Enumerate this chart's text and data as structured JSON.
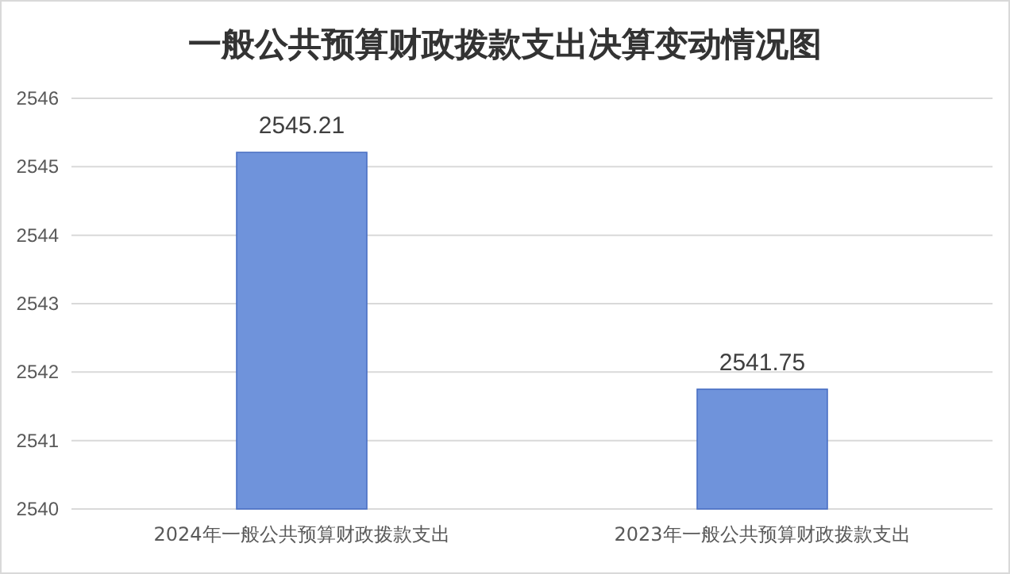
{
  "chart_data": {
    "type": "bar",
    "title": "一般公共预算财政拨款支出决算变动情况图",
    "categories": [
      "2024年一般公共预算财政拨款支出",
      "2023年一般公共预算财政拨款支出"
    ],
    "values": [
      2545.21,
      2541.75
    ],
    "color": "#6f93db",
    "ylim": [
      2540,
      2546
    ],
    "yticks": [
      2540,
      2541,
      2542,
      2543,
      2544,
      2545,
      2546
    ],
    "grid": "y",
    "data_labels": true
  }
}
